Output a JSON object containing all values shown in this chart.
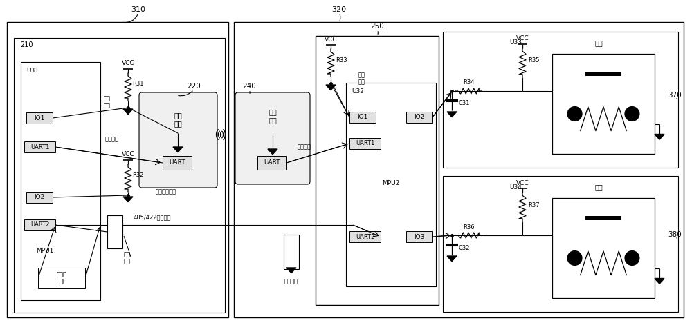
{
  "bg_color": "#ffffff",
  "lc": "#000000",
  "gray_fill": "#e8e8e8",
  "light_fill": "#f0f0f0",
  "labels": {
    "310": "310",
    "320": "320",
    "210": "210",
    "220": "220",
    "240": "240",
    "250": "250",
    "370": "370",
    "380": "380",
    "U31": "U31",
    "U32": "U32",
    "U33": "U33",
    "U34": "U34",
    "MPU1": "MPU1",
    "MPU2": "MPU2",
    "IO1": "IO1",
    "IO2": "IO2",
    "IO3": "IO3",
    "UART1": "UART1",
    "UART2": "UART2",
    "UART": "UART",
    "VCC": "VCC",
    "R31": "R31",
    "R32": "R32",
    "R33": "R33",
    "R34": "R34",
    "R35": "R35",
    "R36": "R36",
    "R37": "R37",
    "C31": "C31",
    "C32": "C32",
    "wl_id": "无线\n识别",
    "wl_mod": "无线\n模块",
    "serial": "串口通信",
    "wired_id": "有线通信识别",
    "s485": "485/422串口通信",
    "comm_relay": "通信\n转接",
    "comm_relay2": "通信转接",
    "other_ctrl": "其它控\n制模块",
    "jiaomen": "脚门"
  }
}
